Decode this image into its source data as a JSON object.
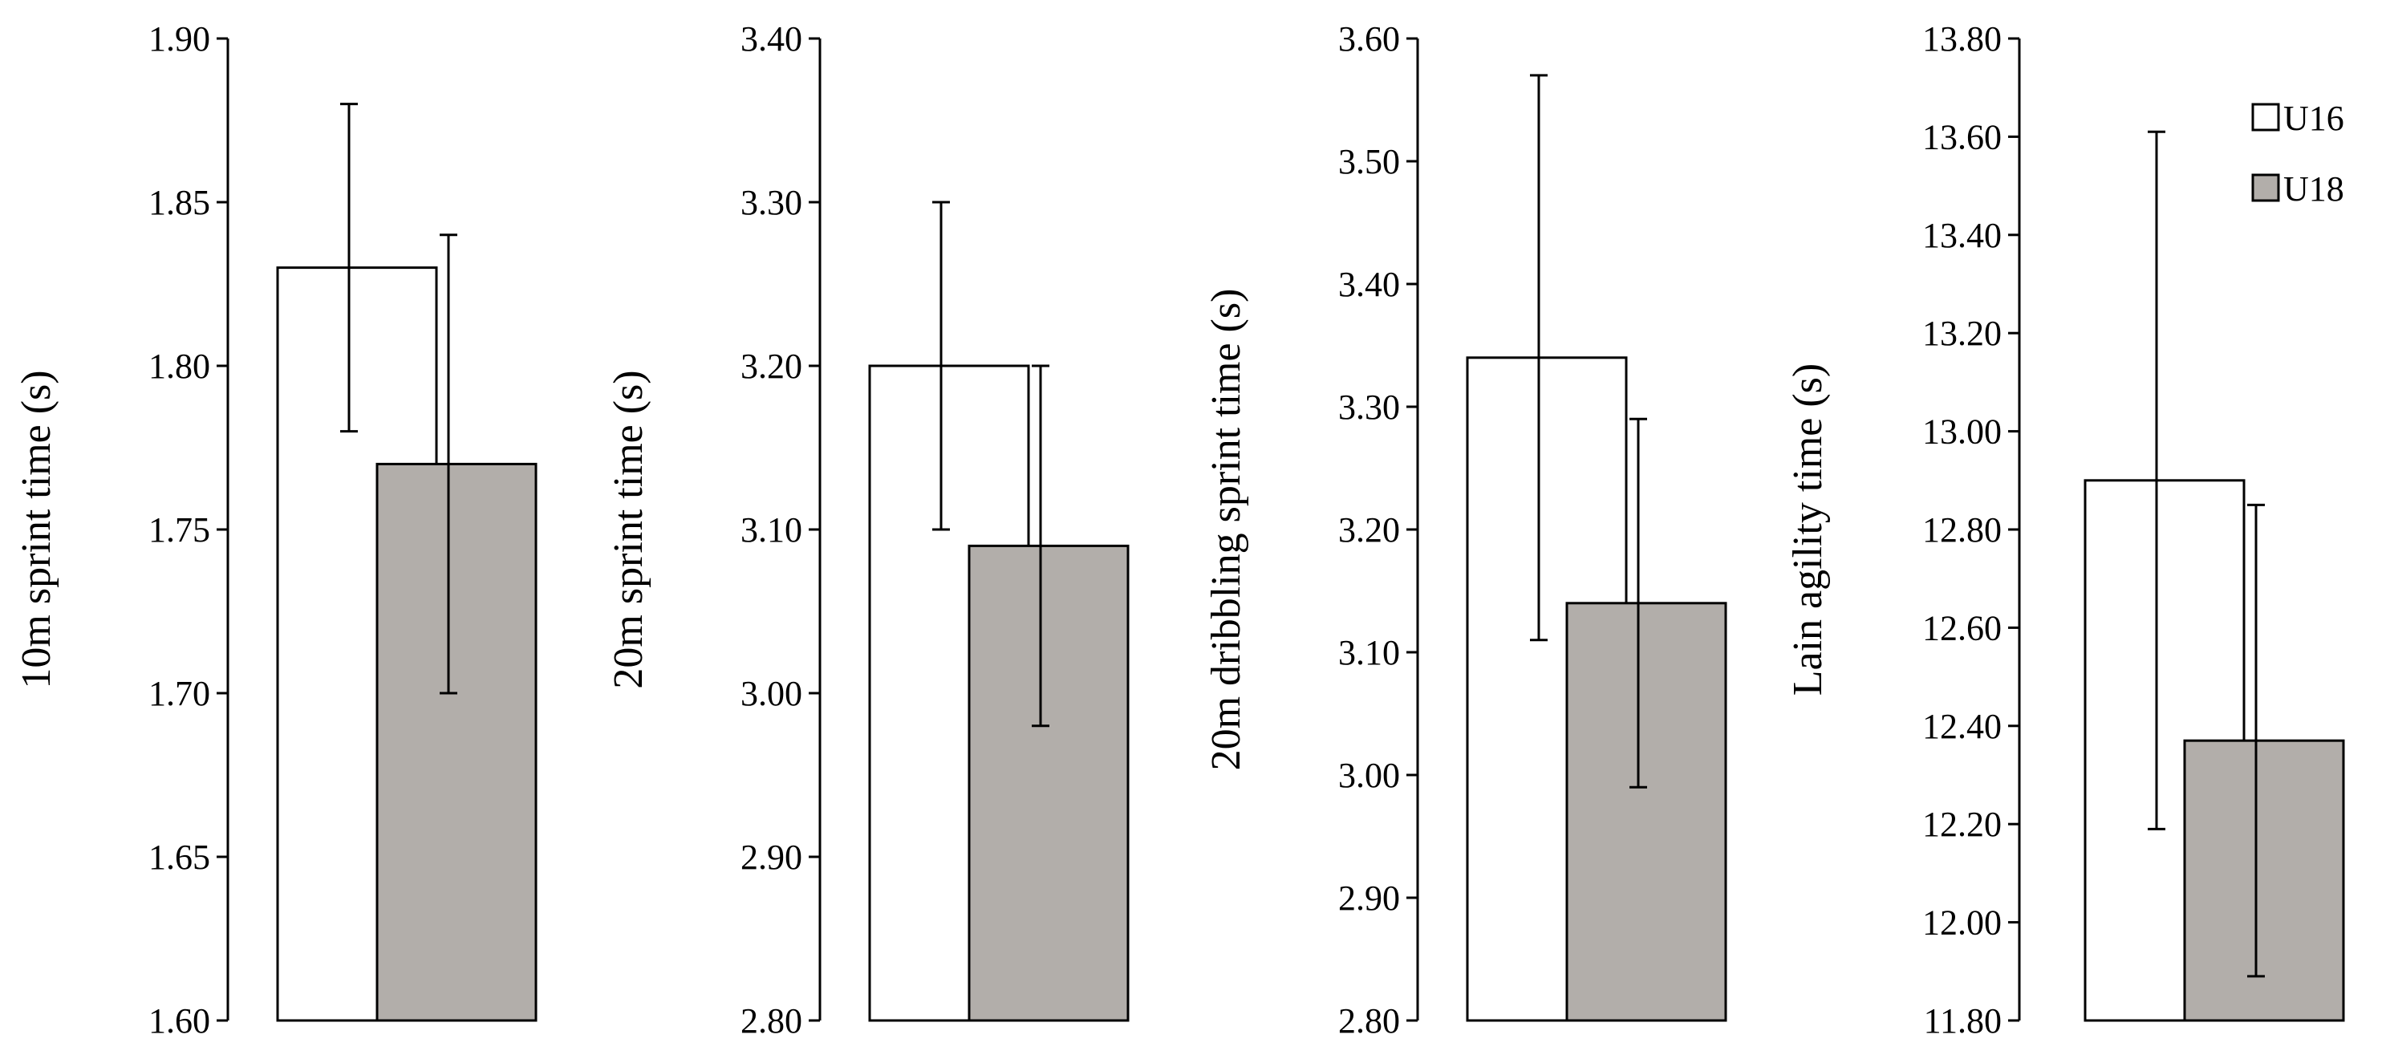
{
  "chart_data": [
    {
      "type": "bar",
      "categories": [
        "U16",
        "U18"
      ],
      "values": [
        1.83,
        1.77
      ],
      "errors": [
        0.05,
        0.07
      ],
      "ylabel": "10m sprint time (s)",
      "ylim": [
        1.6,
        1.9
      ],
      "ticks": [
        "1.60",
        "1.65",
        "1.70",
        "1.75",
        "1.80",
        "1.85",
        "1.90"
      ]
    },
    {
      "type": "bar",
      "categories": [
        "U16",
        "U18"
      ],
      "values": [
        3.2,
        3.09
      ],
      "errors": [
        0.1,
        0.11
      ],
      "ylabel": "20m sprint time (s)",
      "ylim": [
        2.8,
        3.4
      ],
      "ticks": [
        "2.80",
        "2.90",
        "3.00",
        "3.10",
        "3.20",
        "3.30",
        "3.40"
      ]
    },
    {
      "type": "bar",
      "categories": [
        "U16",
        "U18"
      ],
      "values": [
        3.34,
        3.14
      ],
      "errors": [
        0.23,
        0.15
      ],
      "ylabel": "20m dribbling sprint time (s)",
      "ylim": [
        2.8,
        3.6
      ],
      "ticks": [
        "2.80",
        "2.90",
        "3.00",
        "3.10",
        "3.20",
        "3.30",
        "3.40",
        "3.50",
        "3.60"
      ]
    },
    {
      "type": "bar",
      "categories": [
        "U16",
        "U18"
      ],
      "values": [
        12.9,
        12.37
      ],
      "errors": [
        0.71,
        0.48
      ],
      "ylabel": "Lain agility time (s)",
      "ylim": [
        11.8,
        13.8
      ],
      "ticks": [
        "11.80",
        "12.00",
        "12.20",
        "12.40",
        "12.60",
        "12.80",
        "13.00",
        "13.20",
        "13.40",
        "13.60",
        "13.80"
      ]
    }
  ],
  "legend": {
    "placement": "top-right",
    "items": [
      {
        "label": "U16",
        "color": "#ffffff"
      },
      {
        "label": "U18",
        "color": "#b2aeaa"
      }
    ]
  },
  "colors": {
    "bar_stroke": "#000000",
    "axis": "#000000"
  }
}
